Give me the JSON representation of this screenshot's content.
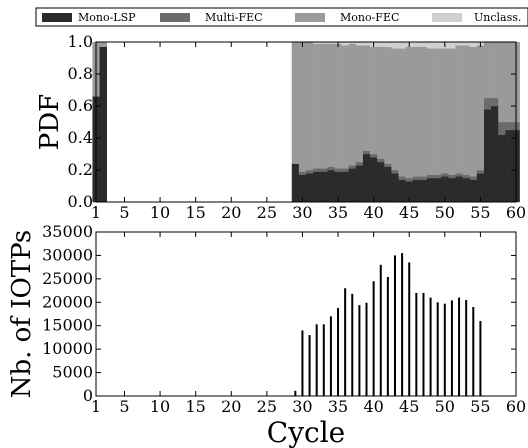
{
  "colors": {
    "mono_lsp": "#2b2b2b",
    "multi_fec": "#6b6b6b",
    "mono_fec": "#9a9a9a",
    "unclass": "#d0d0d0",
    "bars": "#000000"
  },
  "chart_data": [
    {
      "type": "area",
      "stacked": true,
      "ylabel": "PDF",
      "xlabel": "",
      "xlim": [
        1,
        60
      ],
      "ylim": [
        0,
        1
      ],
      "xticks": [
        1,
        5,
        10,
        15,
        20,
        25,
        30,
        35,
        40,
        45,
        50,
        55,
        60
      ],
      "yticks": [
        "0.0",
        "0.2",
        "0.4",
        "0.6",
        "0.8",
        "1.0"
      ],
      "legend_position": "top",
      "x": [
        1,
        2,
        29,
        30,
        31,
        32,
        33,
        34,
        35,
        36,
        37,
        38,
        39,
        40,
        41,
        42,
        43,
        44,
        45,
        46,
        47,
        48,
        49,
        50,
        51,
        52,
        53,
        54,
        55,
        56,
        57,
        58,
        59,
        60
      ],
      "series": [
        {
          "name": "Mono-LSP",
          "color_key": "mono_lsp",
          "values": [
            0.66,
            0.97,
            0.24,
            0.17,
            0.18,
            0.19,
            0.19,
            0.2,
            0.19,
            0.19,
            0.21,
            0.23,
            0.3,
            0.28,
            0.25,
            0.22,
            0.18,
            0.14,
            0.13,
            0.14,
            0.14,
            0.15,
            0.15,
            0.16,
            0.15,
            0.16,
            0.15,
            0.14,
            0.18,
            0.58,
            0.6,
            0.42,
            0.45,
            0.45
          ]
        },
        {
          "name": "Multi-FEC",
          "color_key": "multi_fec",
          "values": [
            0.0,
            0.0,
            0.0,
            0.02,
            0.02,
            0.02,
            0.02,
            0.02,
            0.02,
            0.02,
            0.02,
            0.02,
            0.02,
            0.02,
            0.02,
            0.02,
            0.02,
            0.02,
            0.02,
            0.02,
            0.02,
            0.02,
            0.02,
            0.02,
            0.02,
            0.02,
            0.02,
            0.02,
            0.02,
            0.07,
            0.05,
            0.08,
            0.05,
            0.05
          ]
        },
        {
          "name": "Mono-FEC",
          "color_key": "mono_fec",
          "values": [
            0.34,
            0.03,
            0.76,
            0.81,
            0.8,
            0.78,
            0.78,
            0.77,
            0.78,
            0.77,
            0.76,
            0.73,
            0.66,
            0.67,
            0.7,
            0.73,
            0.76,
            0.8,
            0.82,
            0.81,
            0.81,
            0.79,
            0.79,
            0.78,
            0.79,
            0.8,
            0.81,
            0.81,
            0.78,
            0.35,
            0.35,
            0.5,
            0.5,
            0.5
          ]
        },
        {
          "name": "Unclass.",
          "color_key": "unclass",
          "values": [
            0.0,
            0.0,
            0.0,
            0.0,
            0.0,
            0.01,
            0.01,
            0.01,
            0.01,
            0.02,
            0.01,
            0.02,
            0.02,
            0.03,
            0.03,
            0.03,
            0.04,
            0.04,
            0.03,
            0.03,
            0.03,
            0.04,
            0.04,
            0.04,
            0.04,
            0.02,
            0.02,
            0.03,
            0.02,
            0.0,
            0.0,
            0.0,
            0.0,
            0.0
          ]
        }
      ]
    },
    {
      "type": "bar",
      "ylabel": "Nb. of IOTPs",
      "xlabel": "Cycle",
      "xlim": [
        1,
        60
      ],
      "ylim": [
        0,
        35000
      ],
      "xticks": [
        1,
        5,
        10,
        15,
        20,
        25,
        30,
        35,
        40,
        45,
        50,
        55,
        60
      ],
      "yticks": [
        0,
        5000,
        10000,
        15000,
        20000,
        25000,
        30000,
        35000
      ],
      "x": [
        29,
        30,
        31,
        32,
        33,
        34,
        35,
        36,
        37,
        38,
        39,
        40,
        41,
        42,
        43,
        44,
        45,
        46,
        47,
        48,
        49,
        50,
        51,
        52,
        53,
        54,
        55,
        56
      ],
      "values": [
        1100,
        14000,
        13000,
        15300,
        15300,
        17000,
        18800,
        23000,
        21800,
        19400,
        19900,
        24500,
        28000,
        25400,
        30000,
        30500,
        28500,
        22000,
        22000,
        21000,
        20000,
        19700,
        20400,
        21000,
        20500,
        19000,
        16000,
        0
      ]
    }
  ]
}
